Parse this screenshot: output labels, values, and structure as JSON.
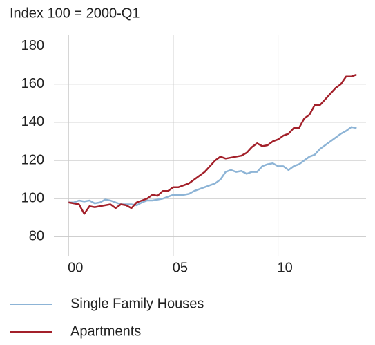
{
  "chart_data": {
    "type": "line",
    "y_label": "Index 100 = 2000-Q1",
    "x": [
      2000,
      2000.25,
      2000.5,
      2000.75,
      2001,
      2001.25,
      2001.5,
      2001.75,
      2002,
      2002.25,
      2002.5,
      2002.75,
      2003,
      2003.25,
      2003.5,
      2003.75,
      2004,
      2004.25,
      2004.5,
      2004.75,
      2005,
      2005.25,
      2005.5,
      2005.75,
      2006,
      2006.25,
      2006.5,
      2006.75,
      2007,
      2007.25,
      2007.5,
      2007.75,
      2008,
      2008.25,
      2008.5,
      2008.75,
      2009,
      2009.25,
      2009.5,
      2009.75,
      2010,
      2010.25,
      2010.5,
      2010.75,
      2011,
      2011.25,
      2011.5,
      2011.75,
      2012,
      2012.25,
      2012.5,
      2012.75,
      2013,
      2013.25,
      2013.5,
      2013.75
    ],
    "series": [
      {
        "name": "Single Family Houses",
        "color": "#8db4d6",
        "values": [
          98,
          98,
          99,
          98.5,
          99,
          97.5,
          98,
          99.5,
          99,
          98,
          97,
          97,
          97,
          96.5,
          98,
          99,
          99,
          99.5,
          100,
          101,
          102,
          102,
          102,
          102.5,
          104,
          105,
          106,
          107,
          108,
          110,
          114,
          115,
          114,
          114.5,
          113,
          114,
          114,
          117,
          118,
          118.5,
          117,
          117,
          115,
          117,
          118,
          120,
          122,
          123,
          126,
          128,
          130,
          132,
          134,
          135.5,
          137.5,
          137
        ]
      },
      {
        "name": "Apartments",
        "color": "#a3202a",
        "values": [
          98,
          97.5,
          97,
          92,
          96,
          95.5,
          96,
          96.5,
          97,
          95,
          97,
          96.5,
          95,
          98,
          99,
          100,
          102,
          101.5,
          104,
          104,
          106,
          106,
          107,
          108,
          110,
          112,
          114,
          117,
          120,
          122,
          121,
          121.5,
          122,
          122.5,
          124,
          127,
          129,
          127.5,
          128,
          130,
          131,
          133,
          134,
          137,
          137,
          142,
          144,
          149,
          149,
          152,
          155,
          158,
          160,
          164,
          164,
          165
        ]
      }
    ],
    "xlim": [
      1999.3,
      2014.2
    ],
    "xticks": [
      {
        "value": 2000,
        "label": "00"
      },
      {
        "value": 2005,
        "label": "05"
      },
      {
        "value": 2010,
        "label": "10"
      }
    ],
    "ylim": [
      70,
      186
    ],
    "yticks": [
      80,
      100,
      120,
      140,
      160,
      180
    ],
    "grid": true
  }
}
